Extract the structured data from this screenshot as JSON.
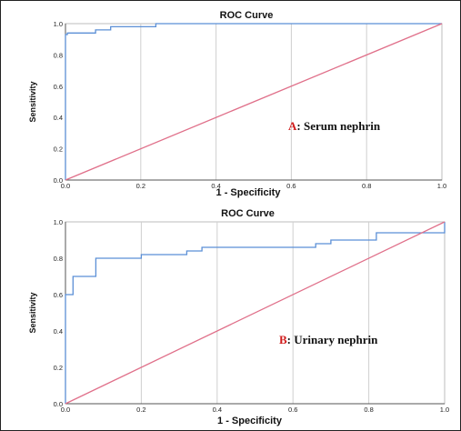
{
  "chart_data": [
    {
      "type": "line",
      "title": "ROC Curve",
      "xlabel": "1 - Specificity",
      "ylabel": "Sensitivity",
      "xlim": [
        0,
        1
      ],
      "ylim": [
        0,
        1
      ],
      "xticks": [
        "0.0",
        "0.2",
        "0.4",
        "0.6",
        "0.8",
        "1.0"
      ],
      "yticks": [
        "0.0",
        "0.2",
        "0.4",
        "0.6",
        "0.8",
        "1.0"
      ],
      "grid": true,
      "annotation": {
        "letter": "A",
        "text": ": Serum nephrin"
      },
      "series": [
        {
          "color": "#5b8fd6",
          "x": [
            0,
            0,
            0.005,
            0.005,
            0.08,
            0.08,
            0.12,
            0.12,
            0.24,
            0.24,
            1.0
          ],
          "y": [
            0,
            0.93,
            0.93,
            0.94,
            0.94,
            0.96,
            0.96,
            0.98,
            0.98,
            1.0,
            1.0
          ]
        },
        {
          "color": "#e0708a",
          "x": [
            0,
            1
          ],
          "y": [
            0,
            1
          ]
        }
      ]
    },
    {
      "type": "line",
      "title": "ROC Curve",
      "xlabel": "1 - Specificity",
      "ylabel": "Sensitivity",
      "xlim": [
        0,
        1
      ],
      "ylim": [
        0,
        1
      ],
      "xticks": [
        "0.0",
        "0.2",
        "0.4",
        "0.6",
        "0.8",
        "1.0"
      ],
      "yticks": [
        "0.0",
        "0.2",
        "0.4",
        "0.6",
        "0.8",
        "1.0"
      ],
      "grid": true,
      "annotation": {
        "letter": "B",
        "text": ": Urinary nephrin"
      },
      "series": [
        {
          "color": "#5b8fd6",
          "x": [
            0,
            0,
            0.02,
            0.02,
            0.08,
            0.08,
            0.2,
            0.2,
            0.32,
            0.32,
            0.36,
            0.36,
            0.66,
            0.66,
            0.7,
            0.7,
            0.82,
            0.82,
            1.0,
            1.0
          ],
          "y": [
            0,
            0.6,
            0.6,
            0.7,
            0.7,
            0.8,
            0.8,
            0.82,
            0.82,
            0.84,
            0.84,
            0.86,
            0.86,
            0.88,
            0.88,
            0.9,
            0.9,
            0.94,
            0.94,
            1.0
          ]
        },
        {
          "color": "#e0708a",
          "x": [
            0,
            1
          ],
          "y": [
            0,
            1
          ]
        }
      ]
    }
  ]
}
